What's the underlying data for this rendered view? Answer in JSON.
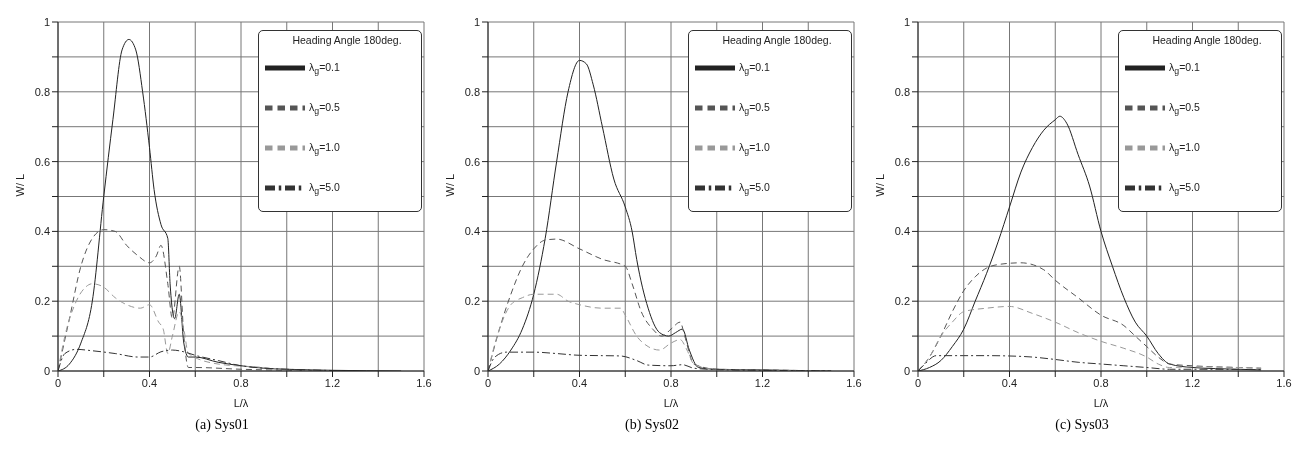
{
  "chart_data": [
    {
      "type": "line",
      "title": "(a) Sys01",
      "xlabel": "L/λ",
      "ylabel": "W/ L",
      "legend_title": "Heading Angle 180deg.",
      "legend": "top right",
      "grid": true,
      "marker": "none",
      "xlim": [
        0,
        1.6
      ],
      "ylim": [
        0,
        1
      ],
      "xticks": [
        0,
        {
          "value": 0.2,
          "label": null
        },
        0.4,
        {
          "value": 0.6,
          "label": null
        },
        0.8,
        {
          "value": 1.0,
          "label": null
        },
        1.2,
        {
          "value": 1.4,
          "label": null
        },
        1.6
      ],
      "yticks": [
        0,
        {
          "value": 0.1,
          "label": null
        },
        0.2,
        {
          "value": 0.3,
          "label": null
        },
        0.4,
        {
          "value": 0.5,
          "label": null
        },
        0.6,
        {
          "value": 0.7,
          "label": null
        },
        0.8,
        {
          "value": 0.9,
          "label": null
        },
        1
      ],
      "series": [
        {
          "name": "λ$_{g}$=0.1",
          "color": "#222222",
          "line_style": "solid",
          "x": [
            0,
            0.05,
            0.1,
            0.15,
            0.2,
            0.24,
            0.28,
            0.31,
            0.34,
            0.37,
            0.4,
            0.42,
            0.45,
            0.48,
            0.49,
            0.51,
            0.53,
            0.55,
            0.57,
            0.6,
            0.7,
            0.8,
            0.9,
            1.0,
            1.2,
            1.5
          ],
          "values": [
            0,
            0.02,
            0.08,
            0.2,
            0.5,
            0.72,
            0.92,
            0.95,
            0.92,
            0.8,
            0.64,
            0.52,
            0.42,
            0.38,
            0.25,
            0.15,
            0.22,
            0.08,
            0.04,
            0.04,
            0.025,
            0.015,
            0.008,
            0.005,
            0.002,
            0
          ]
        },
        {
          "name": "λ$_{g}$=0.5",
          "color": "#555555",
          "line_style": "dashed",
          "x": [
            0,
            0.05,
            0.1,
            0.15,
            0.2,
            0.25,
            0.3,
            0.35,
            0.4,
            0.43,
            0.45,
            0.48,
            0.5,
            0.53,
            0.55,
            0.57,
            0.6,
            0.8,
            1.0,
            1.2
          ],
          "values": [
            0,
            0.15,
            0.3,
            0.38,
            0.405,
            0.4,
            0.36,
            0.33,
            0.31,
            0.33,
            0.36,
            0.25,
            0.15,
            0.3,
            0.1,
            0.01,
            0.01,
            0.005,
            0.002,
            0
          ]
        },
        {
          "name": "λ$_{g}$=1.0",
          "color": "#999999",
          "line_style": "dashed",
          "x": [
            0,
            0.03,
            0.08,
            0.12,
            0.15,
            0.2,
            0.25,
            0.3,
            0.36,
            0.4,
            0.44,
            0.46,
            0.48,
            0.5,
            0.53,
            0.55,
            0.57,
            0.7,
            0.9,
            1.0,
            1.2
          ],
          "values": [
            0,
            0.1,
            0.2,
            0.24,
            0.25,
            0.24,
            0.21,
            0.19,
            0.18,
            0.19,
            0.14,
            0.12,
            0.05,
            0.1,
            0.17,
            0.12,
            0.05,
            0.02,
            0.01,
            0.003,
            0
          ]
        },
        {
          "name": "λ$_{g}$=5.0",
          "color": "#333333",
          "line_style": "dotted",
          "x": [
            0,
            0.03,
            0.08,
            0.15,
            0.25,
            0.35,
            0.4,
            0.45,
            0.5,
            0.55,
            0.6,
            0.7,
            0.8,
            0.9,
            1.0,
            1.1,
            1.3
          ],
          "values": [
            0,
            0.05,
            0.062,
            0.058,
            0.05,
            0.04,
            0.04,
            0.055,
            0.06,
            0.055,
            0.045,
            0.03,
            0.015,
            0.008,
            0.005,
            0.003,
            0
          ]
        }
      ]
    },
    {
      "type": "line",
      "title": "(b) Sys02",
      "xlabel": "L/λ",
      "ylabel": "W/ L",
      "legend_title": "Heading Angle 180deg.",
      "legend": "top right",
      "grid": true,
      "marker": "none",
      "xlim": [
        0,
        1.6
      ],
      "ylim": [
        0,
        1
      ],
      "xticks": [
        0,
        {
          "value": 0.2,
          "label": null
        },
        0.4,
        {
          "value": 0.6,
          "label": null
        },
        0.8,
        {
          "value": 1.0,
          "label": null
        },
        1.2,
        {
          "value": 1.4,
          "label": null
        },
        1.6
      ],
      "yticks": [
        0,
        {
          "value": 0.1,
          "label": null
        },
        0.2,
        {
          "value": 0.3,
          "label": null
        },
        0.4,
        {
          "value": 0.5,
          "label": null
        },
        0.6,
        {
          "value": 0.7,
          "label": null
        },
        0.8,
        {
          "value": 0.9,
          "label": null
        },
        1
      ],
      "series": [
        {
          "name": "λ$_{g}$=0.1",
          "color": "#222222",
          "line_style": "solid",
          "x": [
            0,
            0.05,
            0.1,
            0.15,
            0.2,
            0.25,
            0.3,
            0.35,
            0.4,
            0.43,
            0.46,
            0.5,
            0.55,
            0.6,
            0.63,
            0.65,
            0.7,
            0.75,
            0.79,
            0.82,
            0.85,
            0.88,
            0.92,
            1.0,
            1.2,
            1.5
          ],
          "values": [
            0,
            0.02,
            0.06,
            0.12,
            0.22,
            0.38,
            0.6,
            0.8,
            0.89,
            0.88,
            0.82,
            0.7,
            0.55,
            0.47,
            0.4,
            0.32,
            0.18,
            0.11,
            0.1,
            0.11,
            0.12,
            0.06,
            0.01,
            0.005,
            0.003,
            0
          ]
        },
        {
          "name": "λ$_{g}$=0.5",
          "color": "#555555",
          "line_style": "dashed",
          "x": [
            0,
            0.05,
            0.1,
            0.15,
            0.2,
            0.25,
            0.3,
            0.4,
            0.5,
            0.6,
            0.63,
            0.67,
            0.72,
            0.76,
            0.8,
            0.84,
            0.86,
            0.9,
            1.0,
            1.2,
            1.5
          ],
          "values": [
            0,
            0.12,
            0.22,
            0.3,
            0.35,
            0.375,
            0.378,
            0.35,
            0.32,
            0.3,
            0.25,
            0.17,
            0.12,
            0.1,
            0.12,
            0.14,
            0.1,
            0.02,
            0.005,
            0.003,
            0
          ]
        },
        {
          "name": "λ$_{g}$=1.0",
          "color": "#999999",
          "line_style": "dashed",
          "x": [
            0,
            0.04,
            0.1,
            0.15,
            0.2,
            0.3,
            0.35,
            0.4,
            0.5,
            0.58,
            0.6,
            0.65,
            0.7,
            0.75,
            0.8,
            0.84,
            0.87,
            0.9,
            1.0,
            1.2,
            1.5
          ],
          "values": [
            0,
            0.1,
            0.19,
            0.21,
            0.22,
            0.22,
            0.2,
            0.19,
            0.18,
            0.18,
            0.16,
            0.1,
            0.07,
            0.06,
            0.08,
            0.09,
            0.06,
            0.02,
            0.004,
            0.002,
            0
          ]
        },
        {
          "name": "λ$_{g}$=5.0",
          "color": "#333333",
          "line_style": "dotted",
          "x": [
            0,
            0.03,
            0.08,
            0.2,
            0.3,
            0.4,
            0.5,
            0.58,
            0.65,
            0.7,
            0.8,
            0.85,
            0.9,
            1.0,
            1.2,
            1.5
          ],
          "values": [
            0,
            0.04,
            0.054,
            0.054,
            0.05,
            0.045,
            0.044,
            0.043,
            0.03,
            0.017,
            0.015,
            0.018,
            0.008,
            0.004,
            0.002,
            0
          ]
        }
      ]
    },
    {
      "type": "line",
      "title": "(c) Sys03",
      "xlabel": "L/λ",
      "ylabel": "W/ L",
      "legend_title": "Heading Angle 180deg.",
      "legend": "top right",
      "grid": true,
      "marker": "none",
      "xlim": [
        0,
        1.6
      ],
      "ylim": [
        0,
        1
      ],
      "xticks": [
        0,
        {
          "value": 0.2,
          "label": null
        },
        0.4,
        {
          "value": 0.6,
          "label": null
        },
        0.8,
        {
          "value": 1.0,
          "label": null
        },
        1.2,
        {
          "value": 1.4,
          "label": null
        },
        1.6
      ],
      "yticks": [
        0,
        {
          "value": 0.1,
          "label": null
        },
        0.2,
        {
          "value": 0.3,
          "label": null
        },
        0.4,
        {
          "value": 0.5,
          "label": null
        },
        0.6,
        {
          "value": 0.7,
          "label": null
        },
        0.8,
        {
          "value": 0.9,
          "label": null
        },
        1
      ],
      "series": [
        {
          "name": "λ$_{g}$=0.1",
          "color": "#222222",
          "line_style": "solid",
          "x": [
            0,
            0.05,
            0.1,
            0.15,
            0.2,
            0.25,
            0.3,
            0.35,
            0.4,
            0.45,
            0.5,
            0.55,
            0.6,
            0.62,
            0.65,
            0.7,
            0.75,
            0.8,
            0.85,
            0.9,
            0.95,
            1.0,
            1.05,
            1.1,
            1.2,
            1.4,
            1.5
          ],
          "values": [
            0,
            0.01,
            0.03,
            0.07,
            0.12,
            0.2,
            0.28,
            0.37,
            0.47,
            0.57,
            0.64,
            0.69,
            0.72,
            0.73,
            0.71,
            0.62,
            0.53,
            0.4,
            0.3,
            0.21,
            0.14,
            0.1,
            0.05,
            0.02,
            0.01,
            0.005,
            0.003
          ]
        },
        {
          "name": "λ$_{g}$=0.5",
          "color": "#555555",
          "line_style": "dashed",
          "x": [
            0,
            0.05,
            0.1,
            0.15,
            0.2,
            0.25,
            0.3,
            0.35,
            0.45,
            0.55,
            0.6,
            0.7,
            0.8,
            0.9,
            0.95,
            1.0,
            1.05,
            1.1,
            1.2,
            1.4,
            1.5
          ],
          "values": [
            0,
            0.04,
            0.1,
            0.17,
            0.23,
            0.27,
            0.295,
            0.305,
            0.31,
            0.29,
            0.26,
            0.21,
            0.16,
            0.13,
            0.1,
            0.07,
            0.04,
            0.02,
            0.015,
            0.01,
            0.008
          ]
        },
        {
          "name": "λ$_{g}$=1.0",
          "color": "#999999",
          "line_style": "dashed",
          "x": [
            0,
            0.05,
            0.1,
            0.15,
            0.2,
            0.3,
            0.4,
            0.5,
            0.6,
            0.7,
            0.8,
            0.9,
            1.0,
            1.05,
            1.1,
            1.2,
            1.4,
            1.5
          ],
          "values": [
            0,
            0.04,
            0.1,
            0.14,
            0.17,
            0.18,
            0.185,
            0.165,
            0.14,
            0.11,
            0.085,
            0.065,
            0.04,
            0.02,
            0.01,
            0.012,
            0.01,
            0.008
          ]
        },
        {
          "name": "λ$_{g}$=5.0",
          "color": "#333333",
          "line_style": "dotted",
          "x": [
            0,
            0.03,
            0.08,
            0.2,
            0.3,
            0.4,
            0.5,
            0.6,
            0.7,
            0.8,
            0.9,
            1.0,
            1.1,
            1.2,
            1.5
          ],
          "values": [
            0,
            0.02,
            0.044,
            0.044,
            0.044,
            0.043,
            0.04,
            0.033,
            0.025,
            0.02,
            0.015,
            0.01,
            0.005,
            0.005,
            0.004
          ]
        }
      ]
    }
  ]
}
